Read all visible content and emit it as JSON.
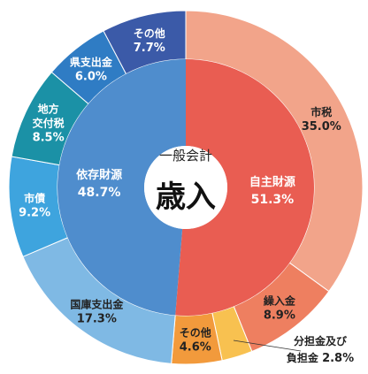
{
  "chart_data": {
    "type": "pie",
    "center": {
      "subtitle": "一般会計",
      "title": "歳入"
    },
    "inner": [
      {
        "name": "自主財源",
        "value": 51.3,
        "percent": "51.3%",
        "color": "#e95d52"
      },
      {
        "name": "依存財源",
        "value": 48.7,
        "percent": "48.7%",
        "color": "#4f8dcd"
      }
    ],
    "outer": [
      {
        "name": "市税",
        "value": 35.0,
        "percent": "35.0%",
        "color": "#f2a48a"
      },
      {
        "name": "繰入金",
        "value": 8.9,
        "percent": "8.9%",
        "color": "#ee7f60"
      },
      {
        "name": "分担金及び負担金",
        "name_lines": [
          "分担金及び",
          "負担金"
        ],
        "value": 2.8,
        "percent": "2.8%",
        "color": "#f8c150"
      },
      {
        "name": "その他",
        "value": 4.6,
        "percent": "4.6%",
        "color": "#f29a3c"
      },
      {
        "name": "国庫支出金",
        "value": 17.3,
        "percent": "17.3%",
        "color": "#7fb9e4"
      },
      {
        "name": "市債",
        "value": 9.2,
        "percent": "9.2%",
        "color": "#3ea4de"
      },
      {
        "name": "地方交付税",
        "name_lines": [
          "地方",
          "交付税"
        ],
        "value": 8.5,
        "percent": "8.5%",
        "color": "#1b91a6"
      },
      {
        "name": "県支出金",
        "value": 6.0,
        "percent": "6.0%",
        "color": "#2f7cc4"
      },
      {
        "name": "その他",
        "value": 7.7,
        "percent": "7.7%",
        "color": "#3b5aa8"
      }
    ]
  }
}
